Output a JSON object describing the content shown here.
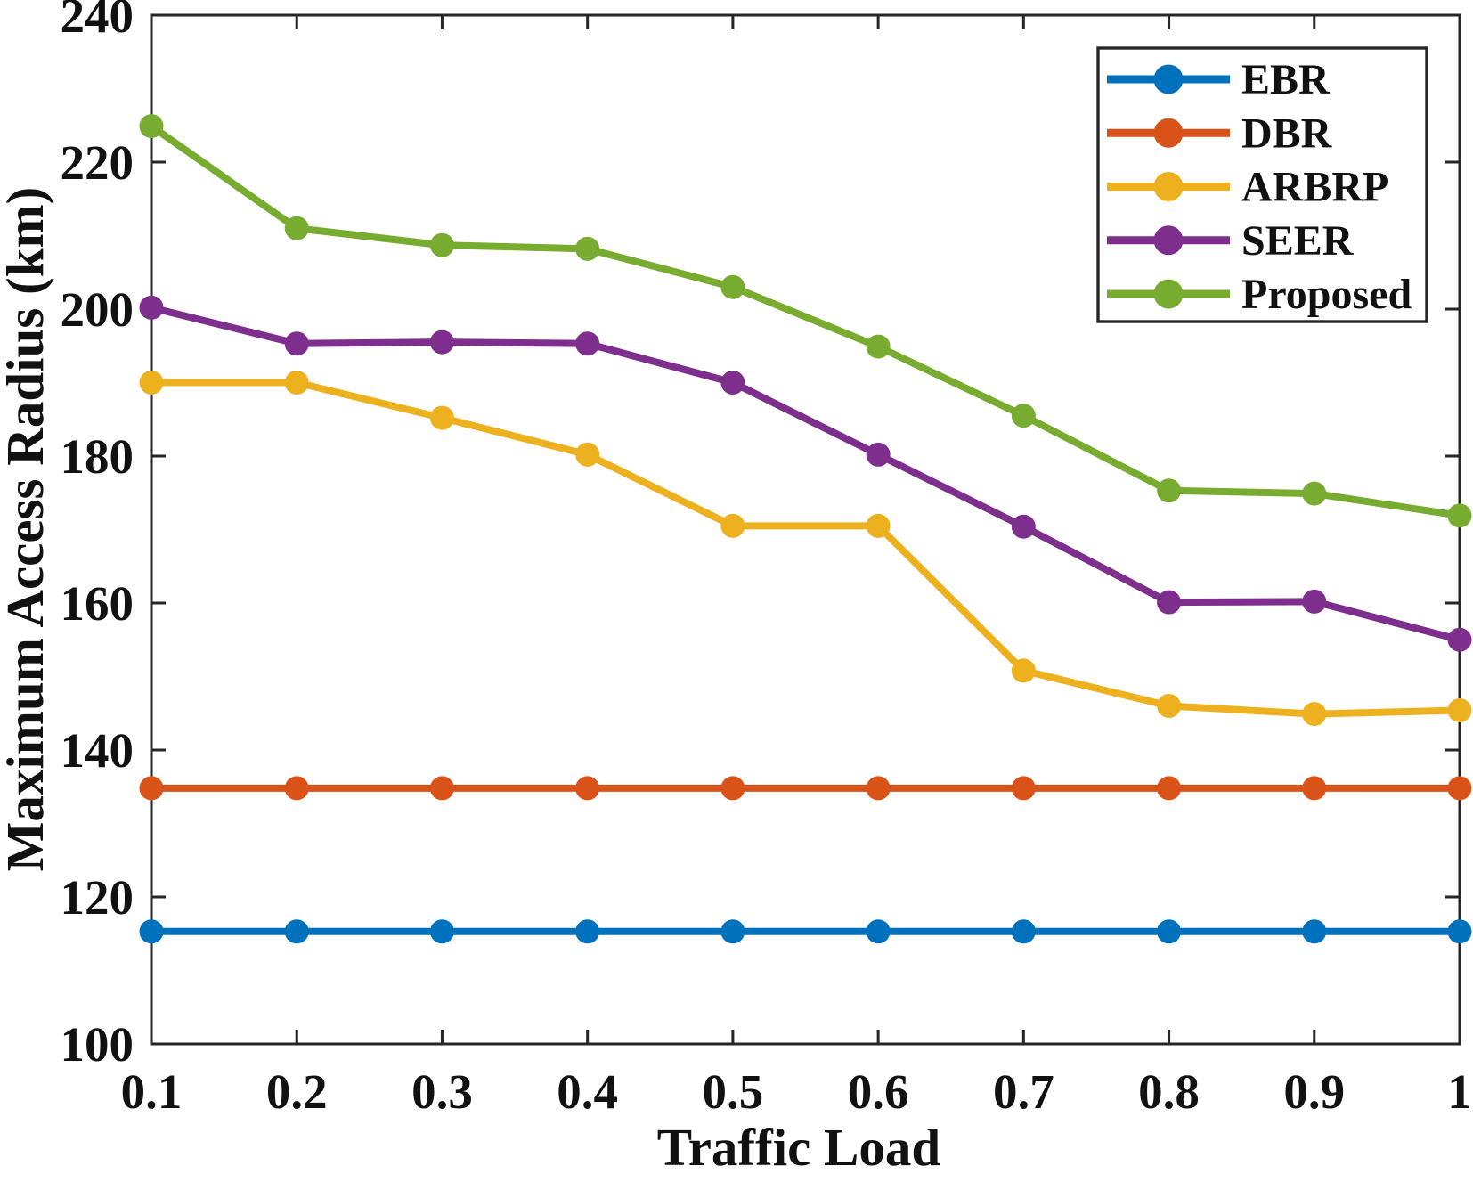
{
  "chart_data": {
    "type": "line",
    "title": "",
    "xlabel": "Traffic Load",
    "ylabel": "Maximum Access Radius (km)",
    "x": [
      0.1,
      0.2,
      0.3,
      0.4,
      0.5,
      0.6,
      0.7,
      0.8,
      0.9,
      1.0
    ],
    "xtick_labels": [
      "0.1",
      "0.2",
      "0.3",
      "0.4",
      "0.5",
      "0.6",
      "0.7",
      "0.8",
      "0.9",
      "1"
    ],
    "yticks": [
      100,
      120,
      140,
      160,
      180,
      200,
      220,
      240
    ],
    "ytick_labels": [
      "100",
      "120",
      "140",
      "160",
      "180",
      "200",
      "220",
      "240"
    ],
    "xlim": [
      0.1,
      1.0
    ],
    "ylim": [
      100,
      240
    ],
    "grid": false,
    "box": true,
    "tick_direction": "in",
    "legend_position": "top-right",
    "axis_color": "#262626",
    "text_color": "#111111",
    "series": [
      {
        "name": "EBR",
        "color": "#0072BD",
        "marker": "circle",
        "values": [
          115.3,
          115.3,
          115.3,
          115.3,
          115.3,
          115.3,
          115.3,
          115.3,
          115.3,
          115.3
        ]
      },
      {
        "name": "DBR",
        "color": "#D95319",
        "marker": "circle",
        "values": [
          134.8,
          134.8,
          134.8,
          134.8,
          134.8,
          134.8,
          134.8,
          134.8,
          134.8,
          134.8
        ]
      },
      {
        "name": "ARBRP",
        "color": "#EDB120",
        "marker": "circle",
        "values": [
          190,
          190,
          185.2,
          180.2,
          170.5,
          170.5,
          150.8,
          146,
          144.9,
          145.4
        ]
      },
      {
        "name": "SEER",
        "color": "#7E2F8E",
        "marker": "circle",
        "values": [
          200.2,
          195.3,
          195.5,
          195.3,
          190,
          180.2,
          170.4,
          160.1,
          160.2,
          155
        ]
      },
      {
        "name": "Proposed",
        "color": "#77AC30",
        "marker": "circle",
        "values": [
          224.9,
          211,
          208.7,
          208.2,
          203,
          194.9,
          185.5,
          175.3,
          174.9,
          171.9
        ]
      }
    ]
  }
}
